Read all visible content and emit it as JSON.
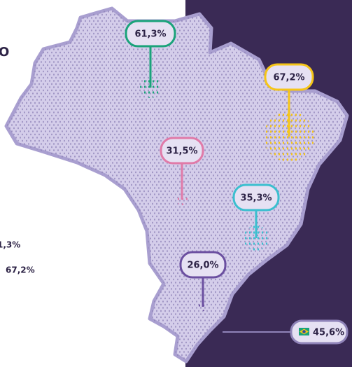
{
  "side_text": [
    "O",
    "1,3%",
    "67,2%"
  ],
  "regions": [
    {
      "label": "61,3%"
    },
    {
      "label": "67,2%"
    },
    {
      "label": "31,5%"
    },
    {
      "label": "35,3%"
    },
    {
      "label": "26,0%"
    }
  ],
  "national": {
    "label": "45,6%"
  }
}
